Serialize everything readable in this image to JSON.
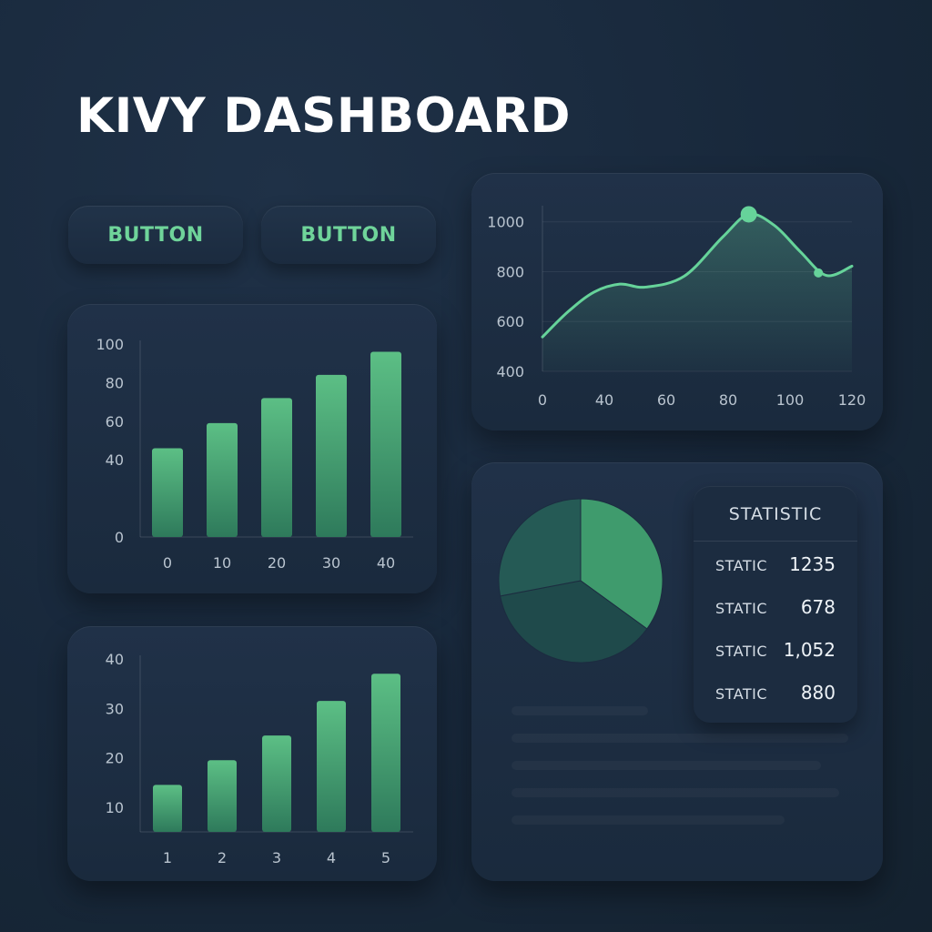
{
  "header": {
    "title": "KIVY DASHBOARD"
  },
  "buttons": [
    {
      "label": "BUTTON"
    },
    {
      "label": "BUTTON"
    }
  ],
  "colors": {
    "accent": "#6fd49a",
    "bar_top": "#5cbf85",
    "bar_bottom": "#2e7a5b",
    "line": "#66d39a",
    "pie": [
      "#3f9b6d",
      "#1f4a4b",
      "#255a55"
    ]
  },
  "chart_data": [
    {
      "type": "bar",
      "categories": [
        "0",
        "10",
        "20",
        "30",
        "40"
      ],
      "values": [
        46,
        59,
        72,
        84,
        96
      ],
      "ylim": [
        0,
        100
      ],
      "yticks": [
        0,
        40,
        60,
        80,
        100
      ],
      "title": "",
      "xlabel": "",
      "ylabel": ""
    },
    {
      "type": "bar",
      "categories": [
        "1",
        "2",
        "3",
        "4",
        "5"
      ],
      "values": [
        14.5,
        19.5,
        24.5,
        31.5,
        37
      ],
      "ylim": [
        5,
        40
      ],
      "yticks": [
        10,
        20,
        30,
        40
      ],
      "title": "",
      "xlabel": "",
      "ylabel": ""
    },
    {
      "type": "area",
      "x": [
        0,
        10,
        20,
        30,
        40,
        55,
        70,
        80,
        90,
        100,
        110,
        120
      ],
      "y": [
        538,
        640,
        718,
        750,
        738,
        782,
        940,
        1030,
        985,
        880,
        785,
        822
      ],
      "xticks": [
        0,
        40,
        60,
        80,
        100,
        120
      ],
      "yticks": [
        400,
        600,
        800,
        1000
      ],
      "markers": [
        {
          "x": 80,
          "y": 1030
        },
        {
          "x": 107,
          "y": 795
        }
      ],
      "grid": true,
      "title": "",
      "xlabel": "",
      "ylabel": ""
    },
    {
      "type": "pie",
      "values": [
        35,
        37,
        28
      ],
      "title": ""
    }
  ],
  "statistic": {
    "title": "STATISTIC",
    "rows": [
      {
        "label": "STATIC",
        "value": "1235"
      },
      {
        "label": "STATIC",
        "value": "678"
      },
      {
        "label": "STATIC",
        "value": "1,052"
      },
      {
        "label": "STATIC",
        "value": "880"
      }
    ]
  }
}
